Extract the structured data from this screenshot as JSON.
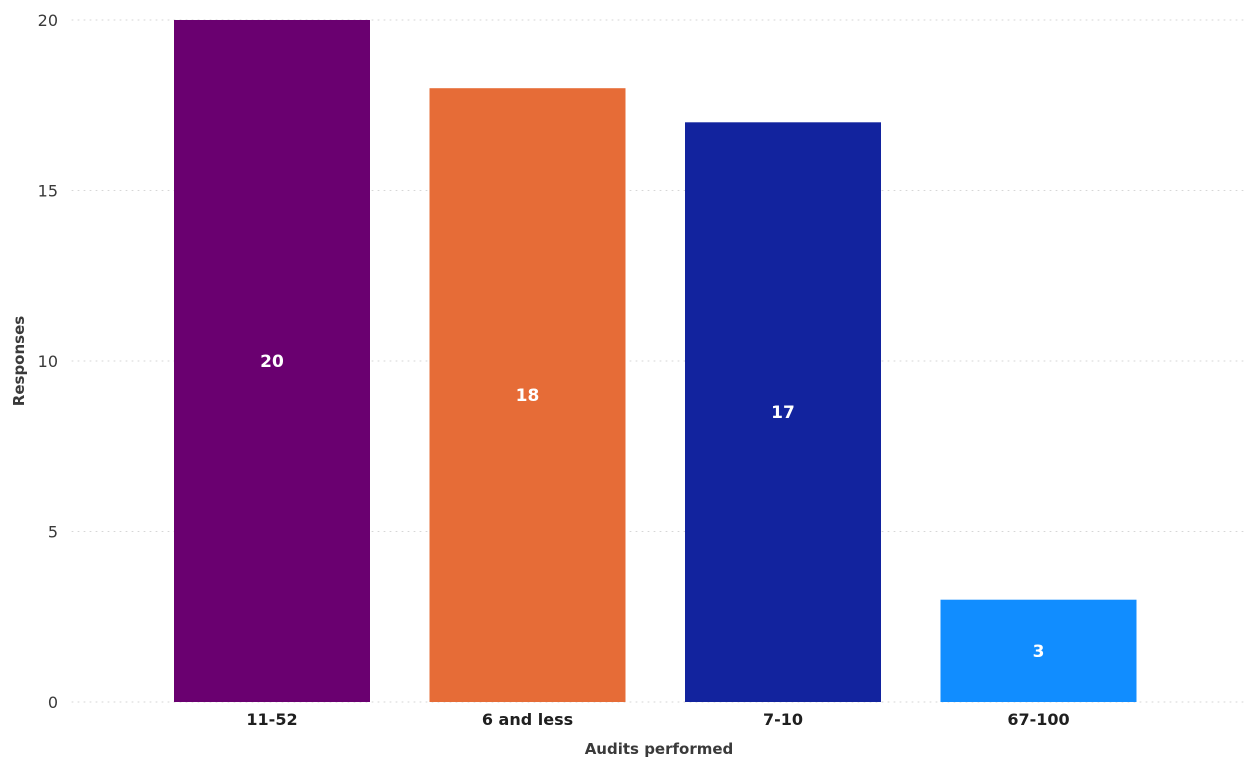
{
  "chart_data": {
    "type": "bar",
    "title": "",
    "xlabel": "Audits performed",
    "ylabel": "Responses",
    "categories": [
      "11-52",
      "6 and less",
      "7-10",
      "67-100"
    ],
    "values": [
      20,
      18,
      17,
      3
    ],
    "value_labels": [
      "20",
      "18",
      "17",
      "3"
    ],
    "colors": [
      "#6a0070",
      "#e66c37",
      "#12239e",
      "#118dff"
    ],
    "ylim": [
      0,
      20
    ],
    "yticks": [
      0,
      5,
      10,
      15,
      20
    ],
    "ytick_labels": [
      "0",
      "5",
      "10",
      "15",
      "20"
    ],
    "grid": true,
    "legend": "none"
  }
}
